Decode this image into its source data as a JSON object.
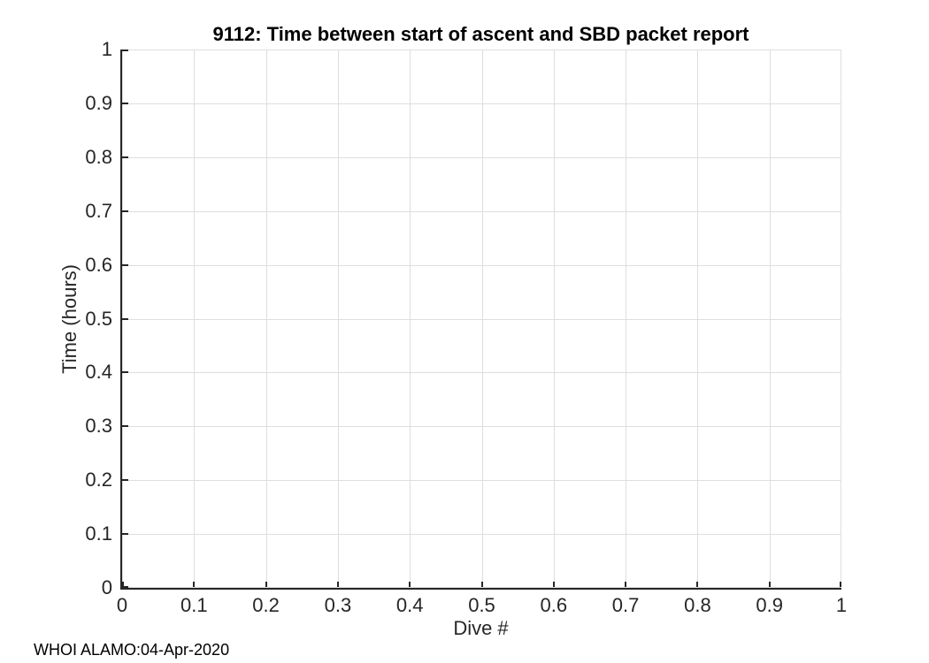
{
  "figure": {
    "title": "9112: Time between start of ascent and SBD packet report",
    "footer": "WHOI ALAMO:04-Apr-2020"
  },
  "axes": {
    "xlabel": "Dive #",
    "ylabel": "Time (hours)",
    "xlim": [
      0,
      1
    ],
    "ylim": [
      0,
      1
    ],
    "x_tick_labels": [
      "0",
      "0.1",
      "0.2",
      "0.3",
      "0.4",
      "0.5",
      "0.6",
      "0.7",
      "0.8",
      "0.9",
      "1"
    ],
    "y_tick_labels": [
      "0",
      "0.1",
      "0.2",
      "0.3",
      "0.4",
      "0.5",
      "0.6",
      "0.7",
      "0.8",
      "0.9",
      "1"
    ],
    "grid": true,
    "box": false,
    "tick_direction": "in"
  },
  "colors": {
    "axis": "#262626",
    "grid": "#dedede",
    "title": "#000000",
    "background": "#ffffff"
  },
  "chart_data": {
    "type": "scatter",
    "title": "9112: Time between start of ascent and SBD packet report",
    "xlabel": "Dive #",
    "ylabel": "Time (hours)",
    "xlim": [
      0,
      1
    ],
    "ylim": [
      0,
      1
    ],
    "x_ticks": [
      0,
      0.1,
      0.2,
      0.3,
      0.4,
      0.5,
      0.6,
      0.7,
      0.8,
      0.9,
      1
    ],
    "y_ticks": [
      0,
      0.1,
      0.2,
      0.3,
      0.4,
      0.5,
      0.6,
      0.7,
      0.8,
      0.9,
      1
    ],
    "grid": true,
    "legend": null,
    "series": [],
    "annotations": [
      "WHOI ALAMO:04-Apr-2020"
    ]
  }
}
